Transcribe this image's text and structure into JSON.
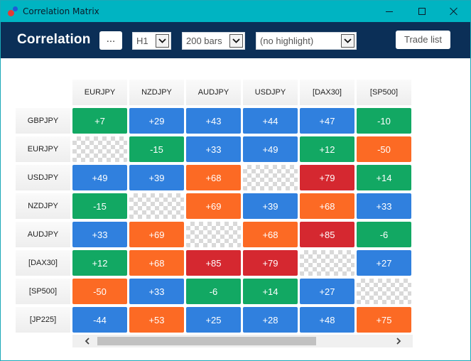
{
  "window": {
    "title": "Correlation Matrix"
  },
  "toolbar": {
    "title": "Correlation",
    "more_label": "...",
    "timeframe": "H1",
    "bars": "200 bars",
    "highlight": "(no highlight)",
    "trade_list_label": "Trade list"
  },
  "colors": {
    "titlebar": "#00b4c2",
    "toolbar": "#0b2f57",
    "green": "#12a863",
    "blue": "#3080de",
    "orange": "#fc6a24",
    "red": "#d52830"
  },
  "matrix": {
    "columns": [
      "EURJPY",
      "NZDJPY",
      "AUDJPY",
      "USDJPY",
      "[DAX30]",
      "[SP500]"
    ],
    "rows": [
      {
        "label": "GBPJPY",
        "cells": [
          {
            "value": "+7",
            "color": "green"
          },
          {
            "value": "+29",
            "color": "blue"
          },
          {
            "value": "+43",
            "color": "blue"
          },
          {
            "value": "+44",
            "color": "blue"
          },
          {
            "value": "+47",
            "color": "blue"
          },
          {
            "value": "-10",
            "color": "green"
          }
        ]
      },
      {
        "label": "EURJPY",
        "cells": [
          {
            "value": "",
            "color": "empty"
          },
          {
            "value": "-15",
            "color": "green"
          },
          {
            "value": "+33",
            "color": "blue"
          },
          {
            "value": "+49",
            "color": "blue"
          },
          {
            "value": "+12",
            "color": "green"
          },
          {
            "value": "-50",
            "color": "orange"
          }
        ]
      },
      {
        "label": "USDJPY",
        "cells": [
          {
            "value": "+49",
            "color": "blue"
          },
          {
            "value": "+39",
            "color": "blue"
          },
          {
            "value": "+68",
            "color": "orange"
          },
          {
            "value": "",
            "color": "empty"
          },
          {
            "value": "+79",
            "color": "red"
          },
          {
            "value": "+14",
            "color": "green"
          }
        ]
      },
      {
        "label": "NZDJPY",
        "cells": [
          {
            "value": "-15",
            "color": "green"
          },
          {
            "value": "",
            "color": "empty"
          },
          {
            "value": "+69",
            "color": "orange"
          },
          {
            "value": "+39",
            "color": "blue"
          },
          {
            "value": "+68",
            "color": "orange"
          },
          {
            "value": "+33",
            "color": "blue"
          }
        ]
      },
      {
        "label": "AUDJPY",
        "cells": [
          {
            "value": "+33",
            "color": "blue"
          },
          {
            "value": "+69",
            "color": "orange"
          },
          {
            "value": "",
            "color": "empty"
          },
          {
            "value": "+68",
            "color": "orange"
          },
          {
            "value": "+85",
            "color": "red"
          },
          {
            "value": "-6",
            "color": "green"
          }
        ]
      },
      {
        "label": "[DAX30]",
        "cells": [
          {
            "value": "+12",
            "color": "green"
          },
          {
            "value": "+68",
            "color": "orange"
          },
          {
            "value": "+85",
            "color": "red"
          },
          {
            "value": "+79",
            "color": "red"
          },
          {
            "value": "",
            "color": "empty"
          },
          {
            "value": "+27",
            "color": "blue"
          }
        ]
      },
      {
        "label": "[SP500]",
        "cells": [
          {
            "value": "-50",
            "color": "orange"
          },
          {
            "value": "+33",
            "color": "blue"
          },
          {
            "value": "-6",
            "color": "green"
          },
          {
            "value": "+14",
            "color": "green"
          },
          {
            "value": "+27",
            "color": "blue"
          },
          {
            "value": "",
            "color": "empty"
          }
        ]
      },
      {
        "label": "[JP225]",
        "cells": [
          {
            "value": "-44",
            "color": "blue"
          },
          {
            "value": "+53",
            "color": "orange"
          },
          {
            "value": "+25",
            "color": "blue"
          },
          {
            "value": "+28",
            "color": "blue"
          },
          {
            "value": "+48",
            "color": "blue"
          },
          {
            "value": "+75",
            "color": "orange"
          }
        ]
      }
    ]
  }
}
